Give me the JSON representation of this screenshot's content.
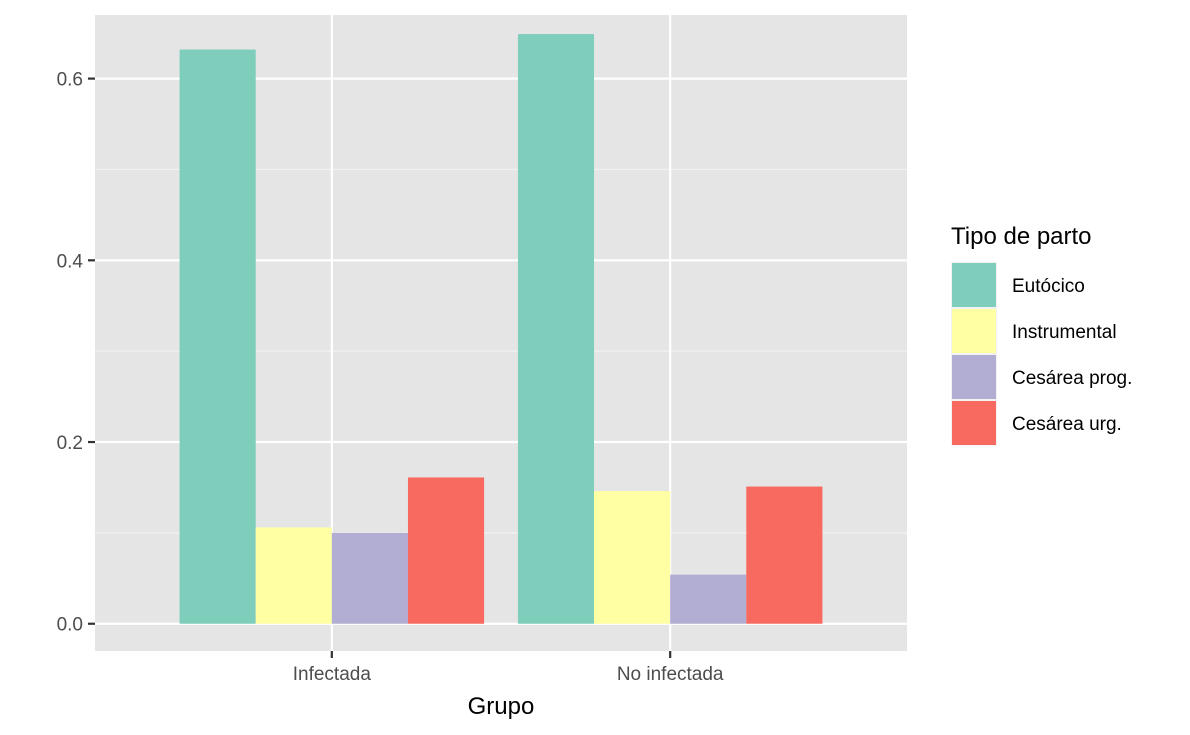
{
  "chart_data": {
    "type": "bar",
    "title": "",
    "xlabel": "Grupo",
    "ylabel": "",
    "categories": [
      "Infectada",
      "No infectada"
    ],
    "ylim": [
      -0.03,
      0.67
    ],
    "yticks": [
      0.0,
      0.2,
      0.4,
      0.6
    ],
    "ytick_labels": [
      "0.0",
      "0.2",
      "0.4",
      "0.6"
    ],
    "grid": true,
    "legend": {
      "title": "Tipo de parto",
      "position": "right"
    },
    "series": [
      {
        "name": "Eutócico",
        "color": "#7FCDBB",
        "values": [
          0.632,
          0.649
        ]
      },
      {
        "name": "Instrumental",
        "color": "#FFFFA3",
        "values": [
          0.106,
          0.146
        ]
      },
      {
        "name": "Cesárea prog.",
        "color": "#B2ADD3",
        "values": [
          0.1,
          0.054
        ]
      },
      {
        "name": "Cesárea urg.",
        "color": "#F8695F",
        "values": [
          0.161,
          0.151
        ]
      }
    ]
  }
}
